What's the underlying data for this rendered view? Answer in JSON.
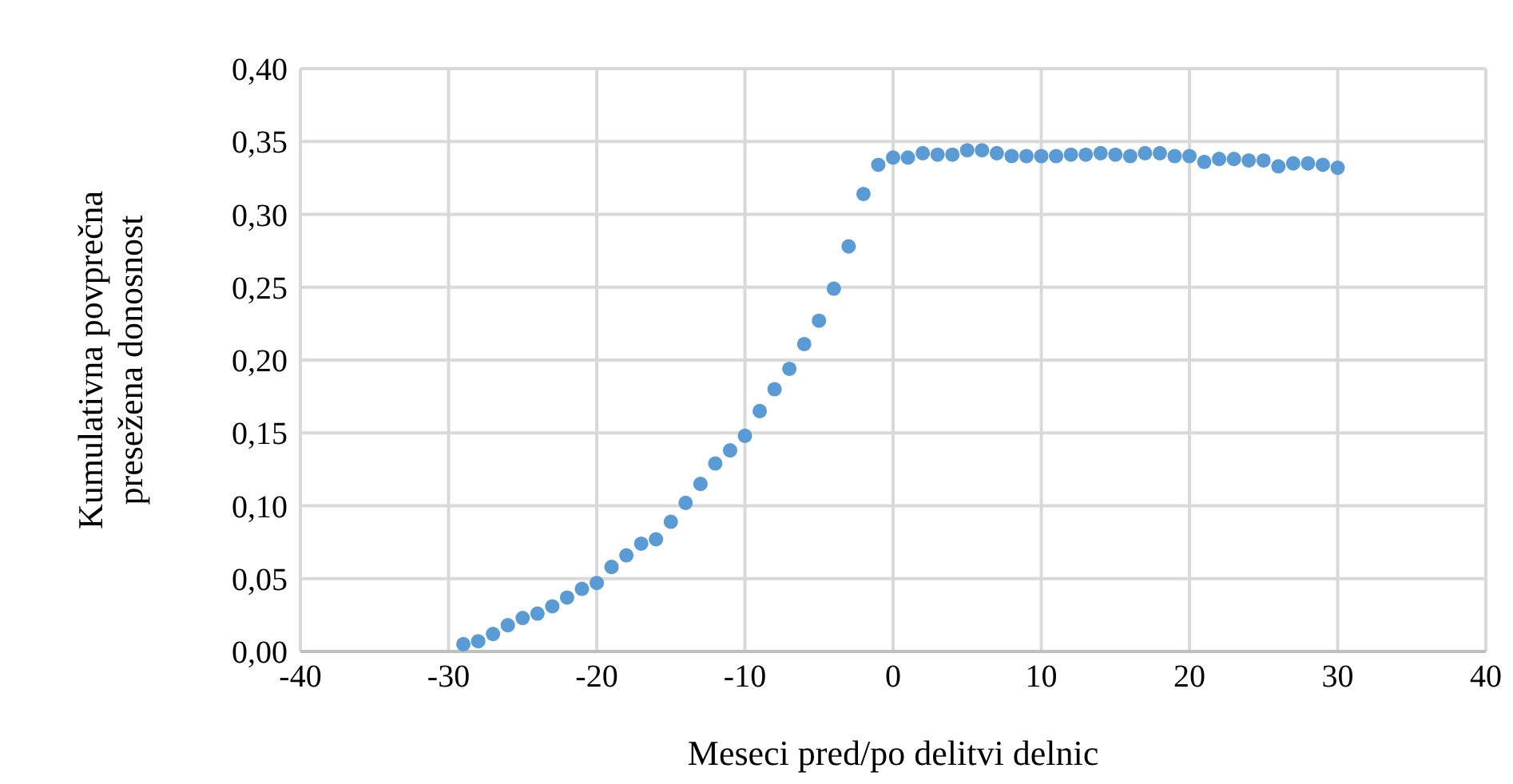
{
  "chart_data": {
    "type": "scatter",
    "xlabel": "Meseci pred/po delitvi delnic",
    "ylabel": "Kumulativna povprečna presežena donosnost",
    "x": [
      -29,
      -28,
      -27,
      -26,
      -25,
      -24,
      -23,
      -22,
      -21,
      -20,
      -19,
      -18,
      -17,
      -16,
      -15,
      -14,
      -13,
      -12,
      -11,
      -10,
      -9,
      -8,
      -7,
      -6,
      -5,
      -4,
      -3,
      -2,
      -1,
      0,
      1,
      2,
      3,
      4,
      5,
      6,
      7,
      8,
      9,
      10,
      11,
      12,
      13,
      14,
      15,
      16,
      17,
      18,
      19,
      20,
      21,
      22,
      23,
      24,
      25,
      26,
      27,
      28,
      29,
      30
    ],
    "series": [
      {
        "color": "#5b9bd5",
        "values": [
          0.005,
          0.007,
          0.012,
          0.018,
          0.023,
          0.026,
          0.031,
          0.037,
          0.043,
          0.047,
          0.058,
          0.066,
          0.074,
          0.077,
          0.089,
          0.102,
          0.115,
          0.129,
          0.138,
          0.148,
          0.165,
          0.18,
          0.194,
          0.211,
          0.227,
          0.249,
          0.278,
          0.314,
          0.334,
          0.339,
          0.339,
          0.342,
          0.341,
          0.341,
          0.344,
          0.344,
          0.342,
          0.34,
          0.34,
          0.34,
          0.34,
          0.341,
          0.341,
          0.342,
          0.341,
          0.34,
          0.342,
          0.342,
          0.34,
          0.34,
          0.336,
          0.338,
          0.338,
          0.337,
          0.337,
          0.333,
          0.335,
          0.335,
          0.334,
          0.332
        ]
      }
    ],
    "xlim": [
      -40,
      40
    ],
    "xticks": [
      -40,
      -30,
      -20,
      -10,
      0,
      10,
      20,
      30,
      40
    ],
    "ylim": [
      0,
      0.4
    ],
    "yticks": [
      {
        "value": 0,
        "label": "0,00"
      },
      {
        "value": 0.05,
        "label": "0,05"
      },
      {
        "value": 0.1,
        "label": "0,10"
      },
      {
        "value": 0.15,
        "label": "0,15"
      },
      {
        "value": 0.2,
        "label": "0,20"
      },
      {
        "value": 0.25,
        "label": "0,25"
      },
      {
        "value": 0.3,
        "label": "0,30"
      },
      {
        "value": 0.35,
        "label": "0,35"
      },
      {
        "value": 0.4,
        "label": "0,40"
      }
    ],
    "grid": true,
    "marker": "circle",
    "legend": false
  }
}
